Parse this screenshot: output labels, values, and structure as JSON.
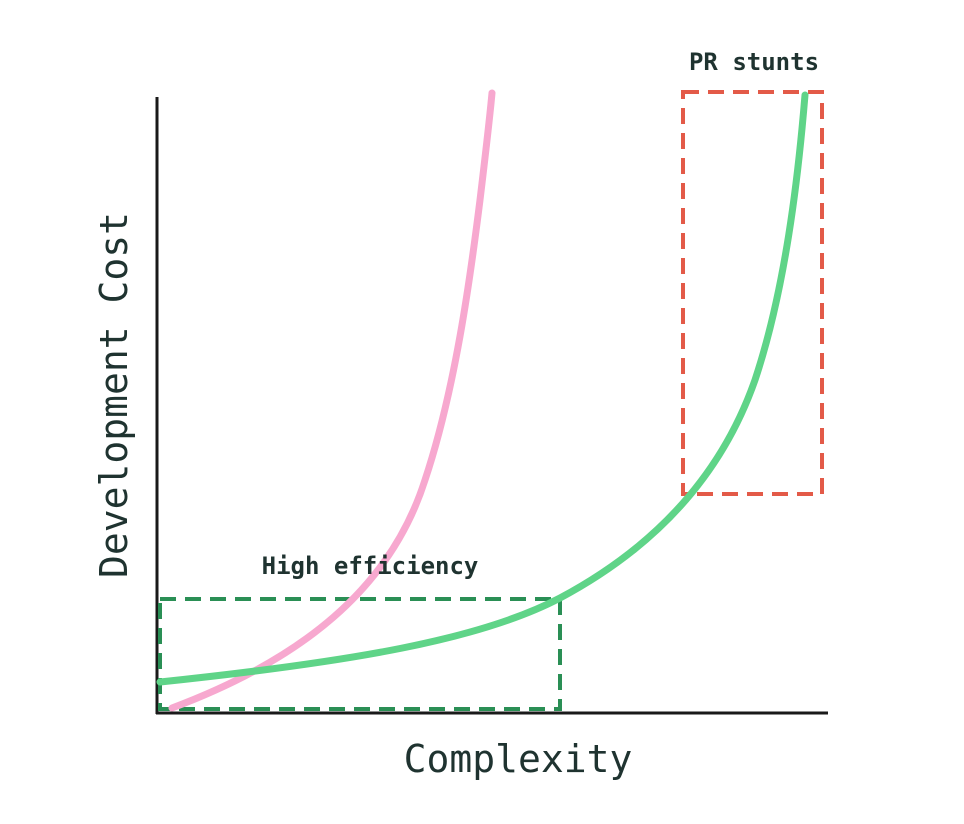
{
  "annotations": {
    "top_right": "PR stunts",
    "bottom_left": "High efficiency"
  },
  "axes": {
    "y_label": "Development Cost",
    "x_label": "Complexity"
  }
}
